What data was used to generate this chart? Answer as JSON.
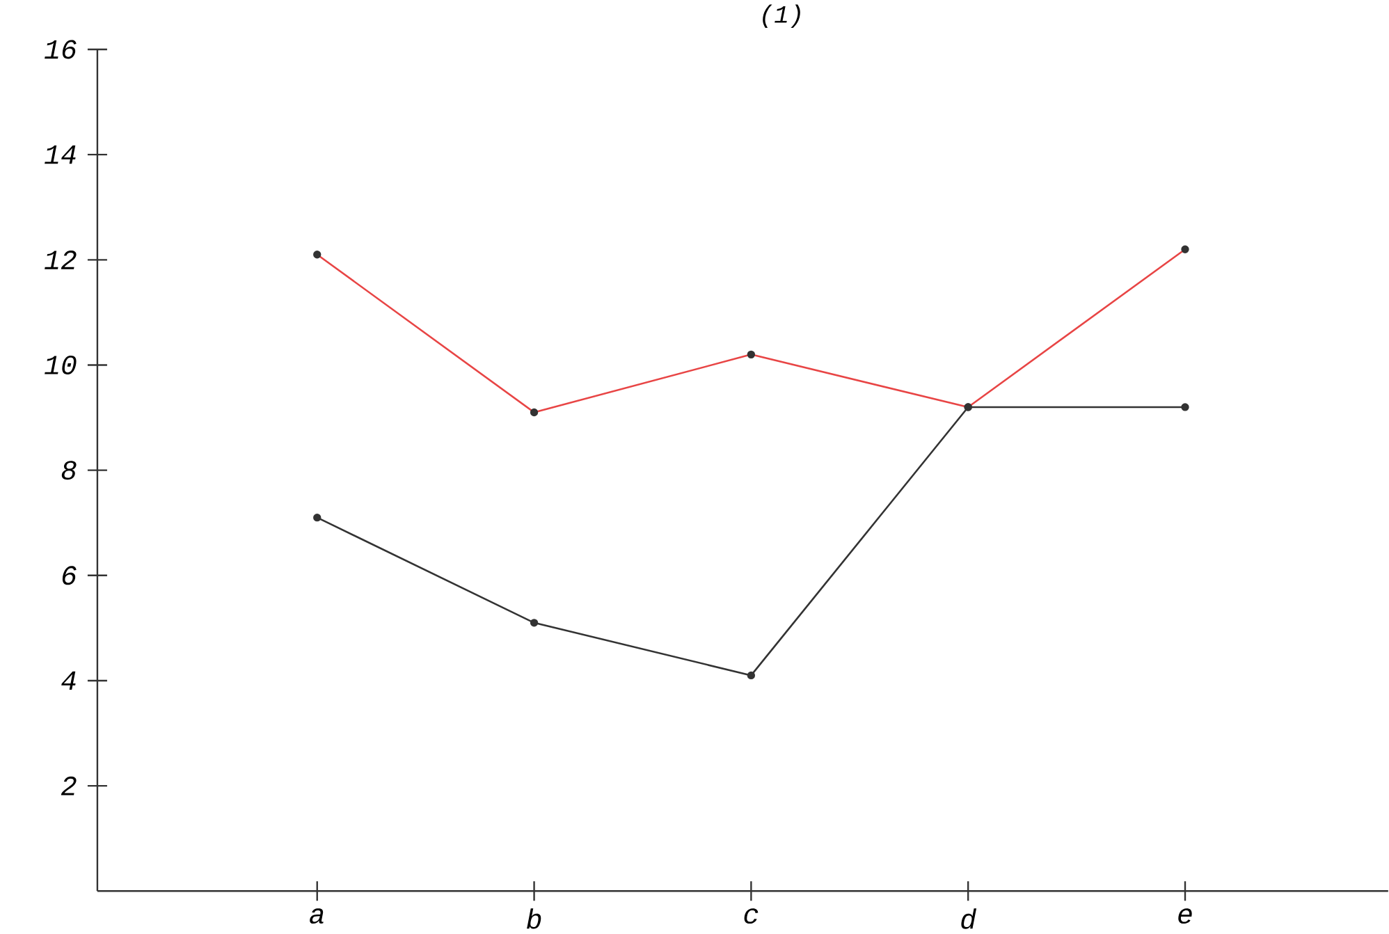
{
  "chart_data": {
    "type": "line",
    "title": "(1)",
    "categories": [
      "a",
      "b",
      "c",
      "d",
      "e"
    ],
    "series": [
      {
        "color": "#e84545",
        "values": [
          12.1,
          9.1,
          10.2,
          9.2,
          12.2
        ]
      },
      {
        "color": "#333333",
        "values": [
          7.1,
          5.1,
          4.1,
          9.2,
          9.2
        ]
      }
    ],
    "ylim": [
      0,
      16
    ],
    "yticks": [
      2,
      4,
      6,
      8,
      10,
      12,
      14,
      16
    ],
    "grid": false,
    "marker": "circle",
    "line_style": "solid"
  }
}
